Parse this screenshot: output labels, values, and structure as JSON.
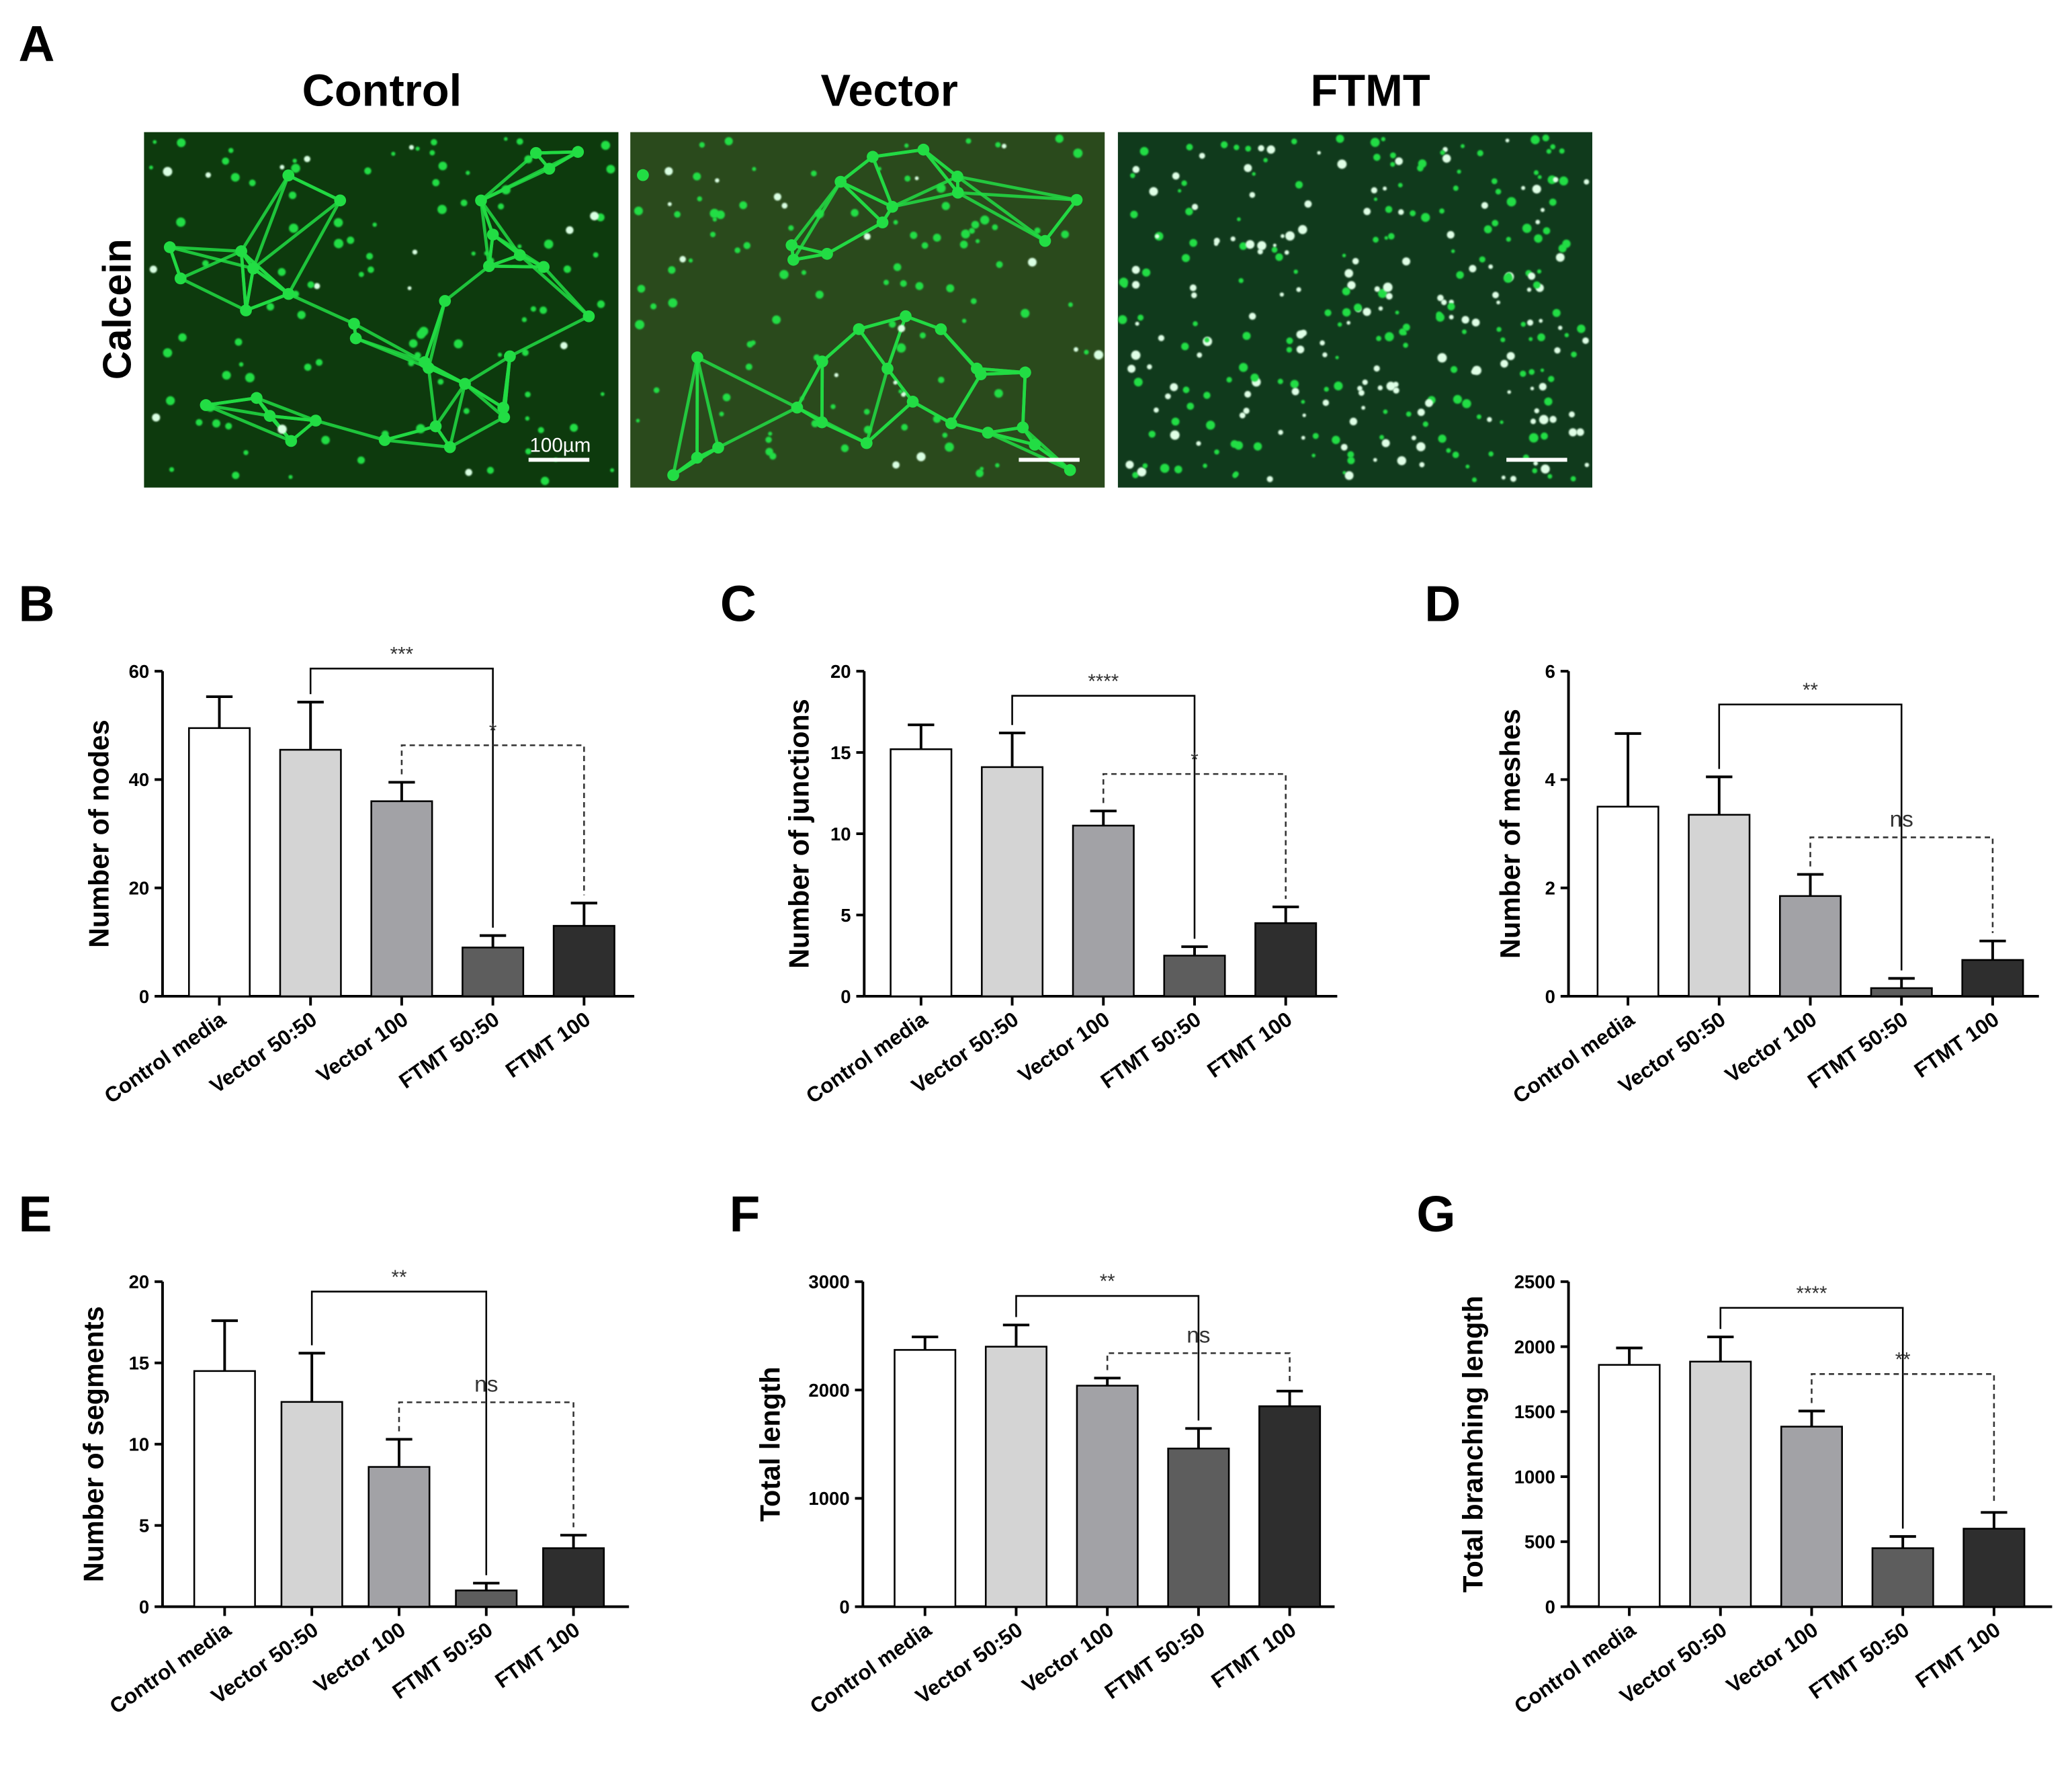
{
  "panel_a": {
    "label": "A",
    "row_label": "Calcein",
    "scale_bar_text": "100µm",
    "columns": [
      {
        "title": "Control",
        "pattern": "network",
        "bg": "#0d3a0d"
      },
      {
        "title": "Vector",
        "pattern": "network",
        "bg": "#2a4a1c"
      },
      {
        "title": "FTMT",
        "pattern": "dots",
        "bg": "#103a1c"
      }
    ]
  },
  "colors": {
    "bars": [
      "#ffffff",
      "#d4d4d4",
      "#a2a2a6",
      "#5d5d5d",
      "#2e2e2e"
    ],
    "fluorescence": "#22dd44"
  },
  "chart_data": [
    {
      "label": "B",
      "type": "bar",
      "ylabel": "Number of nodes",
      "categories": [
        "Control media",
        "Vector 50:50",
        "Vector 100",
        "FTMT 50:50",
        "FTMT 100"
      ],
      "values": [
        49.5,
        45.5,
        36,
        9,
        13
      ],
      "errors": [
        5.8,
        8.8,
        3.5,
        2.2,
        4.2
      ],
      "ylim": [
        0,
        60
      ],
      "yticks": [
        0,
        20,
        40,
        60
      ],
      "comparisons": [
        {
          "from": 1,
          "to": 3,
          "label": "***",
          "style": "solid"
        },
        {
          "from": 2,
          "to": 4,
          "label": "*",
          "style": "dashed"
        }
      ]
    },
    {
      "label": "C",
      "type": "bar",
      "ylabel": "Number of junctions",
      "categories": [
        "Control media",
        "Vector 50:50",
        "Vector 100",
        "FTMT 50:50",
        "FTMT 100"
      ],
      "values": [
        15.2,
        14.1,
        10.5,
        2.5,
        4.5
      ],
      "errors": [
        1.5,
        2.1,
        0.9,
        0.55,
        1.0
      ],
      "ylim": [
        0,
        20
      ],
      "yticks": [
        0,
        5,
        10,
        15,
        20
      ],
      "comparisons": [
        {
          "from": 1,
          "to": 3,
          "label": "****",
          "style": "solid"
        },
        {
          "from": 2,
          "to": 4,
          "label": "*",
          "style": "dashed"
        }
      ]
    },
    {
      "label": "D",
      "type": "bar",
      "ylabel": "Number of meshes",
      "categories": [
        "Control media",
        "Vector 50:50",
        "Vector 100",
        "FTMT 50:50",
        "FTMT 100"
      ],
      "values": [
        3.5,
        3.35,
        1.85,
        0.15,
        0.67
      ],
      "errors": [
        1.35,
        0.7,
        0.4,
        0.18,
        0.35
      ],
      "ylim": [
        0,
        6
      ],
      "yticks": [
        0,
        2,
        4,
        6
      ],
      "comparisons": [
        {
          "from": 1,
          "to": 3,
          "label": "**",
          "style": "solid"
        },
        {
          "from": 2,
          "to": 4,
          "label": "ns",
          "style": "dashed"
        }
      ]
    },
    {
      "label": "E",
      "type": "bar",
      "ylabel": "Number of segments",
      "categories": [
        "Control media",
        "Vector 50:50",
        "Vector 100",
        "FTMT 50:50",
        "FTMT 100"
      ],
      "values": [
        14.5,
        12.6,
        8.6,
        1.0,
        3.6
      ],
      "errors": [
        3.1,
        3.0,
        1.7,
        0.45,
        0.8
      ],
      "ylim": [
        0,
        20
      ],
      "yticks": [
        0,
        5,
        10,
        15,
        20
      ],
      "comparisons": [
        {
          "from": 1,
          "to": 3,
          "label": "**",
          "style": "solid"
        },
        {
          "from": 2,
          "to": 4,
          "label": "ns",
          "style": "dashed"
        }
      ]
    },
    {
      "label": "F",
      "type": "bar",
      "ylabel": "Total length",
      "categories": [
        "Control media",
        "Vector 50:50",
        "Vector 100",
        "FTMT 50:50",
        "FTMT 100"
      ],
      "values": [
        2370,
        2400,
        2040,
        1460,
        1850
      ],
      "errors": [
        120,
        200,
        70,
        185,
        140
      ],
      "ylim": [
        0,
        3000
      ],
      "yticks": [
        0,
        1000,
        2000,
        3000
      ],
      "comparisons": [
        {
          "from": 1,
          "to": 3,
          "label": "**",
          "style": "solid"
        },
        {
          "from": 2,
          "to": 4,
          "label": "ns",
          "style": "dashed"
        }
      ]
    },
    {
      "label": "G",
      "type": "bar",
      "ylabel": "Total branching length",
      "categories": [
        "Control media",
        "Vector 50:50",
        "Vector 100",
        "FTMT 50:50",
        "FTMT 100"
      ],
      "values": [
        1860,
        1885,
        1385,
        450,
        600
      ],
      "errors": [
        130,
        190,
        120,
        90,
        125
      ],
      "ylim": [
        0,
        2500
      ],
      "yticks": [
        0,
        500,
        1000,
        1500,
        2000,
        2500
      ],
      "comparisons": [
        {
          "from": 1,
          "to": 3,
          "label": "****",
          "style": "solid"
        },
        {
          "from": 2,
          "to": 4,
          "label": "**",
          "style": "dashed"
        }
      ]
    }
  ]
}
